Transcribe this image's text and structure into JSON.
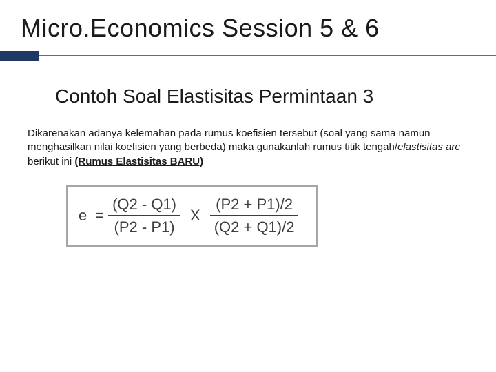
{
  "colors": {
    "accent": "#1f3864",
    "rule": "#6b6b6b",
    "text": "#1a1a1a",
    "formula_text": "#3e3e3e",
    "formula_border": "#a6a6a6",
    "background": "#ffffff"
  },
  "typography": {
    "title_fontsize": 36,
    "subtitle_fontsize": 28,
    "body_fontsize": 15,
    "formula_fontsize": 22,
    "font_family": "Arial"
  },
  "title": "Micro.Economics Session 5 & 6",
  "subtitle": "Contoh Soal Elastisitas Permintaan 3",
  "body": {
    "part1": "Dikarenakan adanya kelemahan pada rumus koefisien tersebut (soal yang sama namun menghasilkan nilai koefisien yang berbeda) maka gunakanlah rumus titik tengah/",
    "italic": "elastisitas arc",
    "part2": " berikut ini ",
    "underlined": "(Rumus Elastisitas BARU)"
  },
  "formula": {
    "lhs": "e",
    "eq": "=",
    "frac1_num": "(Q2 - Q1)",
    "frac1_den": "(P2 - P1)",
    "times": "X",
    "frac2_num": "(P2 + P1)/2",
    "frac2_den": "(Q2 + Q1)/2"
  }
}
